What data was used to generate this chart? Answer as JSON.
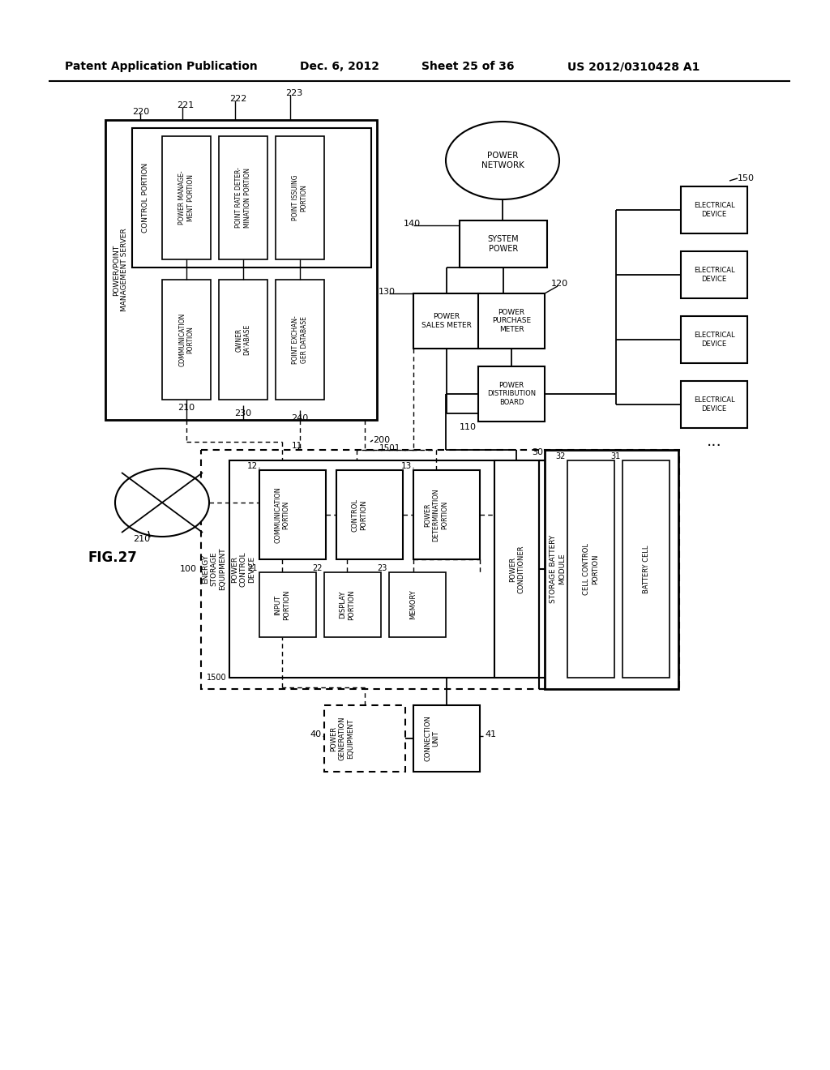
{
  "bg_color": "#ffffff",
  "header_left": "Patent Application Publication",
  "header_date": "Dec. 6, 2012",
  "header_sheet": "Sheet 25 of 36",
  "header_right": "US 2012/0310428 A1",
  "fig_label": "FIG.27"
}
